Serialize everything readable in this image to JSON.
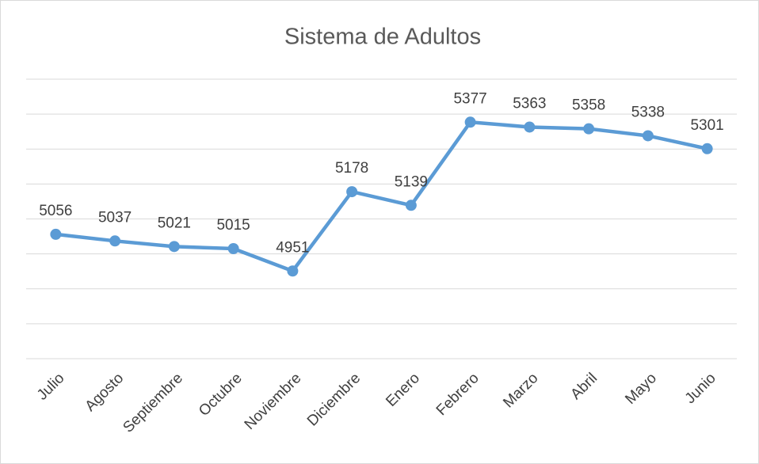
{
  "chart_data": {
    "type": "line",
    "title": "Sistema de Adultos",
    "categories": [
      "Julio",
      "Agosto",
      "Septiembre",
      "Octubre",
      "Noviembre",
      "Diciembre",
      "Enero",
      "Febrero",
      "Marzo",
      "Abril",
      "Mayo",
      "Junio"
    ],
    "values": [
      5056,
      5037,
      5021,
      5015,
      4951,
      5178,
      5139,
      5377,
      5363,
      5358,
      5338,
      5301
    ],
    "color": "#5b9bd5",
    "ylim": [
      4700,
      5500
    ],
    "yticks": [
      4700,
      4800,
      4900,
      5000,
      5100,
      5200,
      5300,
      5400,
      5500
    ],
    "grid": true
  }
}
